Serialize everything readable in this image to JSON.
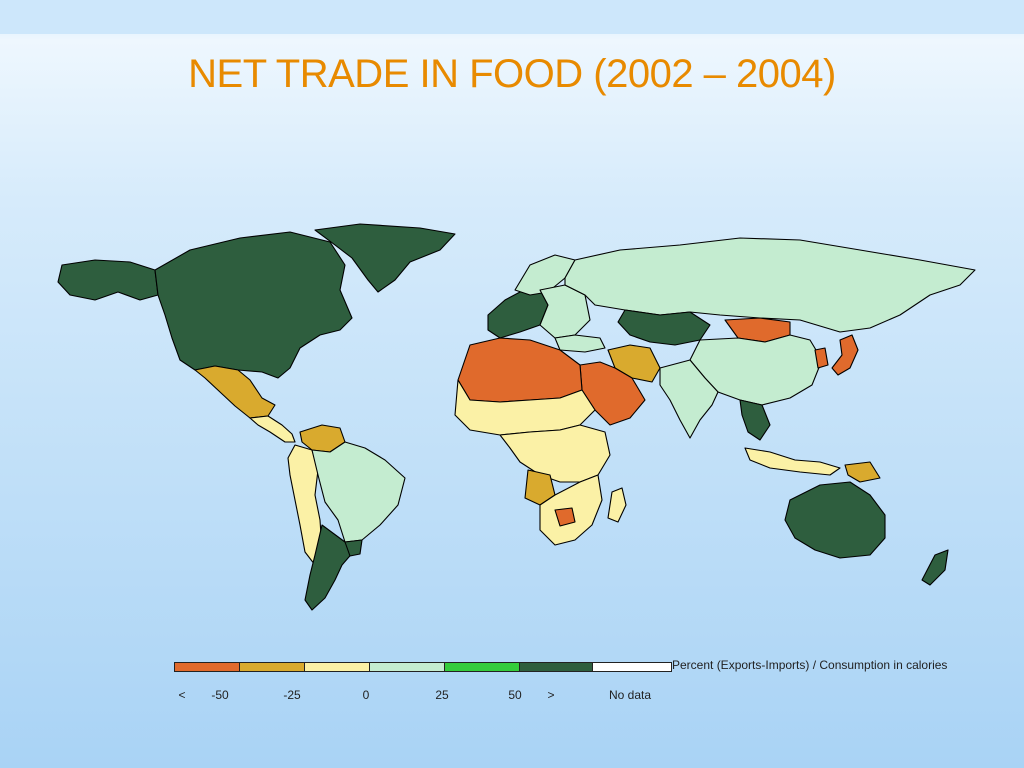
{
  "title": "NET TRADE IN FOOD (2002 – 2004)",
  "legend": {
    "caption": "Percent (Exports-Imports) / Consumption in calories",
    "bins": [
      {
        "label": "< -50",
        "color": "#e06a2c"
      },
      {
        "label": "-50 to -25",
        "color": "#d9aa2e"
      },
      {
        "label": "-25 to 0",
        "color": "#fbf1a6"
      },
      {
        "label": "0 to 25",
        "color": "#c4ecd0"
      },
      {
        "label": "25 to 50",
        "color": "#34cc3c"
      },
      {
        "label": "> 50",
        "color": "#2e5e3e"
      },
      {
        "label": "No data",
        "color": "#ffffff"
      }
    ],
    "ticks": [
      "<",
      "-50",
      "-25",
      "0",
      "25",
      "50",
      ">",
      "No data"
    ]
  },
  "map_regions": [
    {
      "name": "North America (USA/Canada)",
      "class": "> 50"
    },
    {
      "name": "Greenland",
      "class": "> 50"
    },
    {
      "name": "Alaska",
      "class": "> 50"
    },
    {
      "name": "Mexico",
      "class": "-50 to -25"
    },
    {
      "name": "Central America",
      "class": "-25 to 0"
    },
    {
      "name": "Venezuela",
      "class": "-50 to -25"
    },
    {
      "name": "Brazil",
      "class": "0 to 25"
    },
    {
      "name": "Andes",
      "class": "-25 to 0"
    },
    {
      "name": "Argentina",
      "class": "> 50"
    },
    {
      "name": "Uruguay",
      "class": "> 50"
    },
    {
      "name": "Western Europe",
      "class": "> 50"
    },
    {
      "name": "Eastern Europe",
      "class": "0 to 25"
    },
    {
      "name": "Russia",
      "class": "0 to 25"
    },
    {
      "name": "Kazakhstan",
      "class": "> 50"
    },
    {
      "name": "Mongolia",
      "class": "< -50"
    },
    {
      "name": "China",
      "class": "0 to 25"
    },
    {
      "name": "Japan",
      "class": "< -50"
    },
    {
      "name": "Korea",
      "class": "< -50"
    },
    {
      "name": "North Africa",
      "class": "< -50"
    },
    {
      "name": "Arabian Peninsula",
      "class": "< -50"
    },
    {
      "name": "Iran",
      "class": "-50 to -25"
    },
    {
      "name": "Sahel",
      "class": "-25 to 0"
    },
    {
      "name": "Central Africa",
      "class": "-25 to 0"
    },
    {
      "name": "Angola",
      "class": "-50 to -25"
    },
    {
      "name": "Botswana",
      "class": "< -50"
    },
    {
      "name": "Southern Africa",
      "class": "-25 to 0"
    },
    {
      "name": "Madagascar",
      "class": "-25 to 0"
    },
    {
      "name": "India",
      "class": "0 to 25"
    },
    {
      "name": "Thailand/Vietnam",
      "class": "> 50"
    },
    {
      "name": "Indonesia",
      "class": "-25 to 0"
    },
    {
      "name": "Papua New Guinea",
      "class": "-50 to -25"
    },
    {
      "name": "Australia",
      "class": "> 50"
    },
    {
      "name": "New Zealand",
      "class": "> 50"
    }
  ]
}
